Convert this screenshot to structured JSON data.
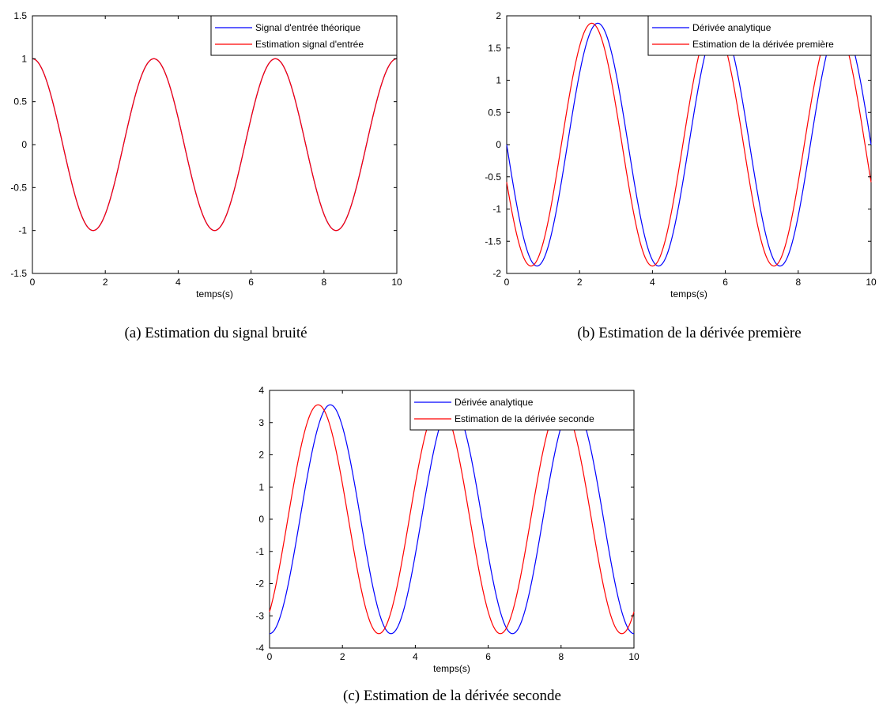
{
  "chart_data": [
    {
      "type": "line",
      "caption": "(a)  Estimation du signal bruité",
      "xlabel": "temps(s)",
      "ylabel": "",
      "xlim": [
        0,
        10
      ],
      "ylim": [
        -1.5,
        1.5
      ],
      "xticks": [
        0,
        2,
        4,
        6,
        8,
        10
      ],
      "xtick_labels": [
        "0",
        "2",
        "4",
        "6",
        "8",
        "10"
      ],
      "yticks": [
        -1.5,
        -1,
        -0.5,
        0,
        0.5,
        1,
        1.5
      ],
      "ytick_labels": [
        "-1.5",
        "-1",
        "-0.5",
        "0",
        "0.5",
        "1",
        "1.5"
      ],
      "grid": false,
      "legend_position": "top-right",
      "series": [
        {
          "name": "Signal d'entrée théorique",
          "color": "#0000ff",
          "function": "cos",
          "amplitude": 1,
          "frequency_hz": 0.3,
          "phase_deg": 0
        },
        {
          "name": "Estimation signal d'entrée",
          "color": "#ff0000",
          "function": "cos",
          "amplitude": 1,
          "frequency_hz": 0.3,
          "phase_deg": 0
        }
      ]
    },
    {
      "type": "line",
      "caption": "(b)  Estimation de la dérivée première",
      "xlabel": "temps(s)",
      "ylabel": "",
      "xlim": [
        0,
        10
      ],
      "ylim": [
        -2,
        2
      ],
      "xticks": [
        0,
        2,
        4,
        6,
        8,
        10
      ],
      "xtick_labels": [
        "0",
        "2",
        "4",
        "6",
        "8",
        "10"
      ],
      "yticks": [
        -2,
        -1.5,
        -1,
        -0.5,
        0,
        0.5,
        1,
        1.5,
        2
      ],
      "ytick_labels": [
        "-2",
        "-1.5",
        "-1",
        "-0.5",
        "0",
        "0.5",
        "1",
        "1.5",
        "2"
      ],
      "grid": false,
      "legend_position": "top-right",
      "series": [
        {
          "name": "Dérivée analytique",
          "color": "#0000ff",
          "function": "sin",
          "amplitude": -1.885,
          "frequency_hz": 0.3,
          "phase_deg": 0
        },
        {
          "name": "Estimation de la dérivée première",
          "color": "#ff0000",
          "function": "sin",
          "amplitude": -1.885,
          "frequency_hz": 0.3,
          "phase_deg": 18
        }
      ]
    },
    {
      "type": "line",
      "caption": "(c)  Estimation de la dérivée seconde",
      "xlabel": "temps(s)",
      "ylabel": "",
      "xlim": [
        0,
        10
      ],
      "ylim": [
        -4,
        4
      ],
      "xticks": [
        0,
        2,
        4,
        6,
        8,
        10
      ],
      "xtick_labels": [
        "0",
        "2",
        "4",
        "6",
        "8",
        "10"
      ],
      "yticks": [
        -4,
        -3,
        -2,
        -1,
        0,
        1,
        2,
        3,
        4
      ],
      "ytick_labels": [
        "-4",
        "-3",
        "-2",
        "-1",
        "0",
        "1",
        "2",
        "3",
        "4"
      ],
      "grid": false,
      "legend_position": "top-right",
      "series": [
        {
          "name": "Dérivée analytique",
          "color": "#0000ff",
          "function": "cos",
          "amplitude": -3.553,
          "frequency_hz": 0.3,
          "phase_deg": 0
        },
        {
          "name": "Estimation de la dérivée seconde",
          "color": "#ff0000",
          "function": "cos",
          "amplitude": -3.553,
          "frequency_hz": 0.3,
          "phase_deg": 36
        }
      ]
    }
  ]
}
